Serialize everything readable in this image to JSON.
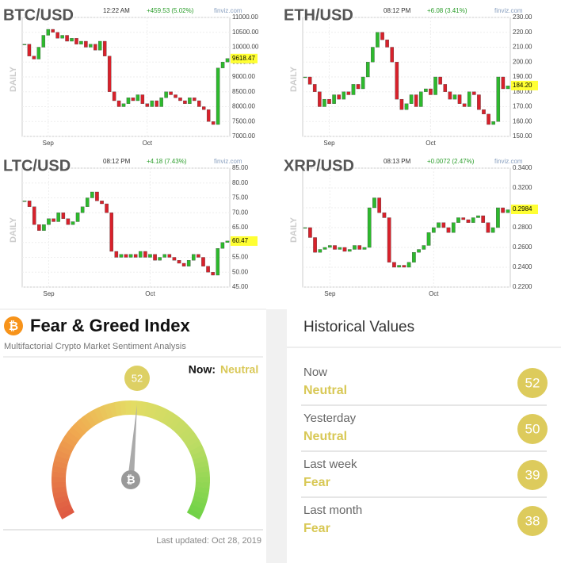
{
  "charts": [
    {
      "title": "BTC/USD",
      "time": "12:22 AM",
      "change": "+459.53 (5.02%)",
      "source": "finviz.com",
      "side": "DAILY",
      "price": 9618.47,
      "ylim": [
        7000,
        11000
      ],
      "yticks": [
        {
          "value": 7000,
          "label": "7000.00"
        },
        {
          "value": 7500,
          "label": "7500.00"
        },
        {
          "value": 8000,
          "label": "8000.00"
        },
        {
          "value": 8500,
          "label": "8500.00"
        },
        {
          "value": 9000,
          "label": "9000.00"
        },
        {
          "value": 9500,
          "label": "9500.00"
        },
        {
          "value": 10000,
          "label": "10000.00"
        },
        {
          "value": 10500,
          "label": "10500.00"
        },
        {
          "value": 11000,
          "label": "11000.00"
        }
      ],
      "xticks": [
        {
          "value": 5,
          "label": "Sep"
        },
        {
          "value": 26,
          "label": "Oct"
        }
      ],
      "closes": [
        10100,
        9700,
        9600,
        10000,
        10400,
        10600,
        10500,
        10300,
        10400,
        10200,
        10300,
        10100,
        10200,
        10000,
        10100,
        9900,
        10200,
        9700,
        8500,
        8200,
        8000,
        8100,
        8300,
        8200,
        8400,
        8100,
        8000,
        8200,
        8000,
        8300,
        8500,
        8400,
        8300,
        8200,
        8100,
        8300,
        8200,
        8000,
        7900,
        7500,
        7400,
        9300,
        9500,
        9618
      ]
    },
    {
      "title": "ETH/USD",
      "time": "08:12 PM",
      "change": "+6.08 (3.41%)",
      "source": "finviz.com",
      "side": "DAILY",
      "price": {
        "value": 184.2,
        "label": "184.20"
      },
      "ylim": [
        150,
        230
      ],
      "yticks": [
        {
          "value": 150,
          "label": "150.00"
        },
        {
          "value": 160,
          "label": "160.00"
        },
        {
          "value": 170,
          "label": "170.00"
        },
        {
          "value": 180,
          "label": "180.00"
        },
        {
          "value": 190,
          "label": "190.00"
        },
        {
          "value": 200,
          "label": "200.00"
        },
        {
          "value": 210,
          "label": "210.00"
        },
        {
          "value": 220,
          "label": "220.00"
        },
        {
          "value": 230,
          "label": "230.00"
        }
      ],
      "xticks": [
        {
          "value": 5,
          "label": "Sep"
        },
        {
          "value": 26,
          "label": "Oct"
        }
      ],
      "closes": [
        190,
        185,
        180,
        170,
        175,
        172,
        178,
        175,
        180,
        178,
        185,
        182,
        190,
        200,
        210,
        220,
        215,
        210,
        200,
        175,
        168,
        172,
        178,
        170,
        180,
        182,
        178,
        190,
        185,
        180,
        175,
        178,
        172,
        170,
        180,
        178,
        168,
        165,
        158,
        160,
        190,
        182,
        184
      ]
    },
    {
      "title": "LTC/USD",
      "time": "08:12 PM",
      "change": "+4.18 (7.43%)",
      "source": "finviz.com",
      "side": "DAILY",
      "price": 60.47,
      "ylim": [
        45,
        85
      ],
      "yticks": [
        {
          "value": 45,
          "label": "45.00"
        },
        {
          "value": 50,
          "label": "50.00"
        },
        {
          "value": 55,
          "label": "55.00"
        },
        {
          "value": 60,
          "label": "60.00"
        },
        {
          "value": 65,
          "label": "65.00"
        },
        {
          "value": 70,
          "label": "70.00"
        },
        {
          "value": 75,
          "label": "75.00"
        },
        {
          "value": 80,
          "label": "80.00"
        },
        {
          "value": 85,
          "label": "85.00"
        }
      ],
      "xticks": [
        {
          "value": 5,
          "label": "Sep"
        },
        {
          "value": 26,
          "label": "Oct"
        }
      ],
      "closes": [
        74,
        72,
        66,
        64,
        66,
        68,
        67,
        70,
        68,
        66,
        67,
        70,
        72,
        75,
        77,
        74,
        73,
        70,
        57,
        55,
        56,
        55,
        56,
        55,
        57,
        55,
        56,
        54,
        55,
        56,
        55,
        54,
        53,
        52,
        54,
        56,
        55,
        52,
        50,
        49,
        58,
        60,
        60.5
      ]
    },
    {
      "title": "XRP/USD",
      "time": "08:13 PM",
      "change": "+0.0072 (2.47%)",
      "source": "finviz.com",
      "side": "DAILY",
      "price": 0.2984,
      "ylim": [
        0.22,
        0.34
      ],
      "yticks": [
        {
          "value": 0.22,
          "label": "0.2200"
        },
        {
          "value": 0.24,
          "label": "0.2400"
        },
        {
          "value": 0.26,
          "label": "0.2600"
        },
        {
          "value": 0.28,
          "label": "0.2800"
        },
        {
          "value": 0.3,
          "label": "0.3000"
        },
        {
          "value": 0.32,
          "label": "0.3200"
        },
        {
          "value": 0.34,
          "label": "0.3400"
        }
      ],
      "xticks": [
        {
          "value": 5,
          "label": "Sep"
        },
        {
          "value": 26,
          "label": "Oct"
        }
      ],
      "closes": [
        0.28,
        0.27,
        0.255,
        0.258,
        0.26,
        0.262,
        0.258,
        0.26,
        0.256,
        0.258,
        0.262,
        0.258,
        0.26,
        0.3,
        0.31,
        0.295,
        0.29,
        0.245,
        0.24,
        0.242,
        0.24,
        0.245,
        0.255,
        0.258,
        0.262,
        0.275,
        0.28,
        0.285,
        0.28,
        0.275,
        0.285,
        0.29,
        0.288,
        0.285,
        0.29,
        0.292,
        0.285,
        0.275,
        0.28,
        0.3,
        0.295,
        0.298
      ]
    }
  ],
  "index": {
    "title": "Fear & Greed Index",
    "subtitle": "Multifactorial Crypto Market Sentiment Analysis",
    "now_label": "Now:",
    "now_class": "Neutral",
    "value": 52,
    "range": [
      0,
      100
    ],
    "updated": "Last updated: Oct 28, 2019"
  },
  "history": {
    "title": "Historical Values",
    "items": [
      {
        "period": "Now",
        "class": "Neutral",
        "value": 52
      },
      {
        "period": "Yesterday",
        "class": "Neutral",
        "value": 50
      },
      {
        "period": "Last week",
        "class": "Fear",
        "value": 39
      },
      {
        "period": "Last month",
        "class": "Fear",
        "value": 38
      }
    ]
  }
}
